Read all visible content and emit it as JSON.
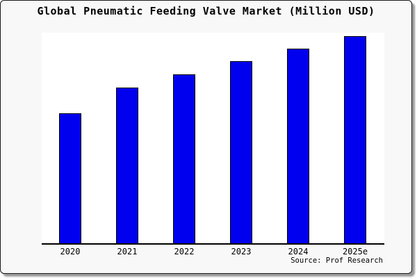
{
  "title": "Global Pneumatic Feeding Valve Market (Million USD)",
  "source": "Source: Prof Research",
  "colors": {
    "background": "#F8F8F8",
    "plot_background": "#FFFFFF",
    "bar_fill": "#0000EE",
    "bar_border": "#000000",
    "axis": "#000000",
    "frame_border": "#1A1A1A",
    "shadow": "#9A9A9A",
    "text": "#000000"
  },
  "chart_data": {
    "type": "bar",
    "title": "Global Pneumatic Feeding Valve Market (Million USD)",
    "categories": [
      "2020",
      "2021",
      "2022",
      "2023",
      "2024",
      "2025e"
    ],
    "values": [
      62.8,
      75.1,
      81.4,
      87.7,
      93.7,
      100
    ],
    "value_scale_note": "no y-axis ticks shown; values estimated from bar heights relative to 2025e = 100",
    "xlabel": "",
    "ylabel": "",
    "ylim": [
      0,
      101.5
    ],
    "grid": false,
    "legend": null,
    "annotations": [
      "Source: Prof Research"
    ]
  }
}
